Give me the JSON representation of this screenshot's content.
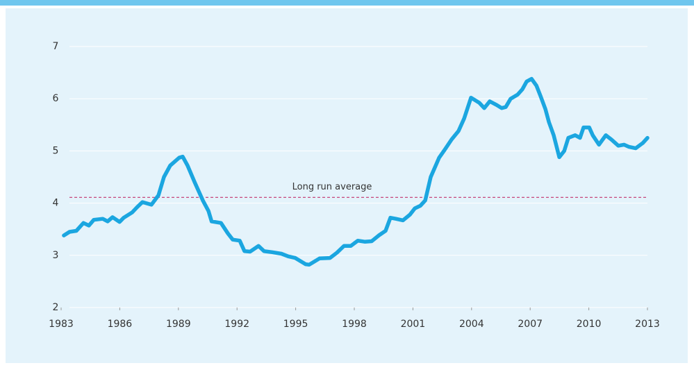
{
  "chart_data": {
    "type": "line",
    "x": [
      1983.14,
      1983.43,
      1983.78,
      1984.14,
      1984.42,
      1984.67,
      1985.13,
      1985.38,
      1985.63,
      1985.99,
      1986.2,
      1986.63,
      1986.88,
      1987.16,
      1987.62,
      1987.98,
      1988.26,
      1988.58,
      1989.04,
      1989.22,
      1989.47,
      1989.83,
      1990.25,
      1990.54,
      1990.7,
      1991.18,
      1991.53,
      1991.78,
      1992.14,
      1992.38,
      1992.67,
      1993.1,
      1993.38,
      1993.8,
      1994.27,
      1994.62,
      1994.98,
      1995.51,
      1995.69,
      1996.22,
      1996.76,
      1997.11,
      1997.47,
      1997.82,
      1998.18,
      1998.53,
      1998.89,
      1999.25,
      1999.6,
      1999.85,
      2000.13,
      2000.49,
      2000.85,
      2001.1,
      2001.38,
      2001.63,
      2001.91,
      2002.2,
      2002.34,
      2002.62,
      2002.98,
      2003.33,
      2003.62,
      2003.97,
      2004.4,
      2004.65,
      2004.93,
      2005.28,
      2005.54,
      2005.75,
      2006.0,
      2006.36,
      2006.6,
      2006.82,
      2007.07,
      2007.32,
      2007.53,
      2007.78,
      2007.96,
      2008.2,
      2008.49,
      2008.74,
      2008.95,
      2009.3,
      2009.55,
      2009.73,
      2010.02,
      2010.2,
      2010.52,
      2010.87,
      2011.15,
      2011.51,
      2011.8,
      2012.04,
      2012.4,
      2012.76,
      2013.0
    ],
    "series": [
      {
        "color": "#1ba6e0",
        "values": [
          3.38,
          3.45,
          3.47,
          3.62,
          3.57,
          3.68,
          3.7,
          3.65,
          3.73,
          3.64,
          3.72,
          3.82,
          3.92,
          4.02,
          3.97,
          4.15,
          4.5,
          4.72,
          4.87,
          4.89,
          4.72,
          4.4,
          4.05,
          3.85,
          3.65,
          3.62,
          3.42,
          3.3,
          3.28,
          3.08,
          3.07,
          3.18,
          3.08,
          3.06,
          3.03,
          2.98,
          2.95,
          2.83,
          2.82,
          2.94,
          2.95,
          3.05,
          3.18,
          3.18,
          3.28,
          3.26,
          3.27,
          3.38,
          3.47,
          3.72,
          3.7,
          3.67,
          3.78,
          3.9,
          3.95,
          4.05,
          4.5,
          4.75,
          4.87,
          5.02,
          5.22,
          5.38,
          5.62,
          6.02,
          5.92,
          5.82,
          5.95,
          5.88,
          5.82,
          5.84,
          6.0,
          6.08,
          6.18,
          6.33,
          6.38,
          6.25,
          6.05,
          5.8,
          5.55,
          5.3,
          4.88,
          5.0,
          5.25,
          5.3,
          5.25,
          5.45,
          5.45,
          5.3,
          5.12,
          5.3,
          5.22,
          5.1,
          5.12,
          5.08,
          5.05,
          5.15,
          5.25
        ]
      }
    ],
    "xlim": [
      1983,
      2013
    ],
    "xticks": [
      1983,
      1986,
      1989,
      1992,
      1995,
      1998,
      2001,
      2004,
      2007,
      2010,
      2013
    ],
    "ylim": [
      2,
      7
    ],
    "yticks": [
      2,
      3,
      4,
      5,
      6,
      7
    ],
    "grid": true,
    "reference_line": {
      "label": "Long run average",
      "value": 4.11,
      "color": "#c2336e"
    }
  }
}
